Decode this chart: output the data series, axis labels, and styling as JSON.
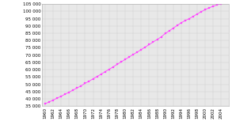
{
  "years": [
    1960,
    1961,
    1962,
    1963,
    1964,
    1965,
    1966,
    1967,
    1968,
    1969,
    1970,
    1971,
    1972,
    1973,
    1974,
    1975,
    1976,
    1977,
    1978,
    1979,
    1980,
    1981,
    1982,
    1983,
    1984,
    1985,
    1986,
    1987,
    1988,
    1989,
    1990,
    1991,
    1992,
    1993,
    1994,
    1995,
    1996,
    1997,
    1998,
    1999,
    2000,
    2001,
    2002,
    2003,
    2004,
    2005
  ],
  "population": [
    36530,
    37790,
    39080,
    40400,
    41750,
    43130,
    44540,
    45980,
    47440,
    48900,
    50600,
    52100,
    53700,
    55300,
    56900,
    58600,
    60200,
    61900,
    63600,
    65300,
    67000,
    68700,
    70400,
    72000,
    73700,
    75500,
    77200,
    79000,
    80700,
    82500,
    84800,
    86600,
    88500,
    90300,
    92200,
    93700,
    95000,
    96600,
    98200,
    99800,
    101200,
    102500,
    103500,
    104500,
    105300,
    106200
  ],
  "line_color": "#FF44FF",
  "marker_color": "#FF44FF",
  "marker": "s",
  "marker_size": 1.5,
  "bg_color": "#FFFFFF",
  "plot_bg_color": "#E8E8E8",
  "grid_color": "#CCCCCC",
  "ylim_min": 35000,
  "ylim_max": 105000,
  "yticks": [
    35000,
    40000,
    45000,
    50000,
    55000,
    60000,
    65000,
    70000,
    75000,
    80000,
    85000,
    90000,
    95000,
    100000,
    105000
  ],
  "xticks": [
    1960,
    1962,
    1964,
    1966,
    1968,
    1970,
    1972,
    1974,
    1976,
    1978,
    1980,
    1982,
    1984,
    1986,
    1988,
    1990,
    1992,
    1994,
    1996,
    1998,
    2000,
    2002,
    2004
  ],
  "tick_label_fontsize": 4.0,
  "line_width": 0.6
}
